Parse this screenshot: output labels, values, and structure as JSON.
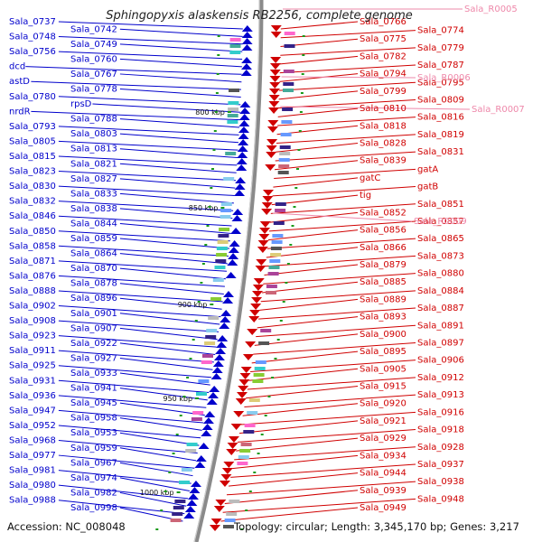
{
  "title": "Sphingopyxis alaskensis RB2256, complete genome",
  "footer": {
    "accession": "Accession: NC_008048",
    "summary": "Topology: circular; Length: 3,345,170 bp; Genes: 3,217"
  },
  "colors": {
    "minus_strand": "#0000cc",
    "plus_strand": "#d00000",
    "rna": "#ee88aa",
    "backbone": "#8a8a8a",
    "tick": "#1a9a1a"
  },
  "ticks": [
    "800 kbp",
    "850 kbp",
    "900 kbp",
    "950 kbp",
    "1000 kbp"
  ],
  "minus_labels": [
    "Sala_0737",
    "Sala_0742",
    "Sala_0748",
    "Sala_0749",
    "Sala_0756",
    "Sala_0760",
    "dcd",
    "Sala_0767",
    "astD",
    "Sala_0778",
    "Sala_0780",
    "rpsD",
    "nrdR",
    "Sala_0788",
    "Sala_0793",
    "Sala_0803",
    "Sala_0805",
    "Sala_0813",
    "Sala_0815",
    "Sala_0821",
    "Sala_0823",
    "Sala_0827",
    "Sala_0830",
    "Sala_0833",
    "Sala_0832",
    "Sala_0838",
    "Sala_0846",
    "Sala_0844",
    "Sala_0850",
    "Sala_0859",
    "Sala_0858",
    "Sala_0864",
    "Sala_0871",
    "Sala_0870",
    "Sala_0876",
    "Sala_0878",
    "Sala_0888",
    "Sala_0896",
    "Sala_0902",
    "Sala_0901",
    "Sala_0908",
    "Sala_0907",
    "Sala_0923",
    "Sala_0922",
    "Sala_0911",
    "Sala_0927",
    "Sala_0925",
    "Sala_0933",
    "Sala_0931",
    "Sala_0941",
    "Sala_0936",
    "Sala_0945",
    "Sala_0947",
    "Sala_0958",
    "Sala_0952",
    "Sala_0953",
    "Sala_0968",
    "Sala_0959",
    "Sala_0977",
    "Sala_0967",
    "Sala_0981",
    "Sala_0974",
    "Sala_0980",
    "Sala_0982",
    "Sala_0988",
    "Sala_0998"
  ],
  "plus_labels": [
    "Sala_0766",
    "Sala_0774",
    "Sala_0775",
    "Sala_0779",
    "Sala_0782",
    "Sala_0787",
    "Sala_0794",
    "Sala_0795",
    "Sala_0799",
    "Sala_0809",
    "Sala_0810",
    "Sala_0816",
    "Sala_0818",
    "Sala_0819",
    "Sala_0828",
    "Sala_0831",
    "Sala_0839",
    "gatA",
    "gatC",
    "gatB",
    "tig",
    "Sala_0851",
    "Sala_0852",
    "Sala_0857",
    "Sala_0856",
    "Sala_0865",
    "Sala_0866",
    "Sala_0873",
    "Sala_0879",
    "Sala_0880",
    "Sala_0885",
    "Sala_0884",
    "Sala_0889",
    "Sala_0887",
    "Sala_0893",
    "Sala_0891",
    "Sala_0900",
    "Sala_0897",
    "Sala_0895",
    "Sala_0906",
    "Sala_0905",
    "Sala_0912",
    "Sala_0915",
    "Sala_0913",
    "Sala_0920",
    "Sala_0916",
    "Sala_0921",
    "Sala_0918",
    "Sala_0929",
    "Sala_0928",
    "Sala_0934",
    "Sala_0937",
    "Sala_0944",
    "Sala_0938",
    "Sala_0939",
    "Sala_0948",
    "Sala_0949"
  ],
  "rna_labels": [
    "Sala_R0005",
    "Sala_R0006",
    "Sala_R0007",
    "Sala_R0009"
  ]
}
